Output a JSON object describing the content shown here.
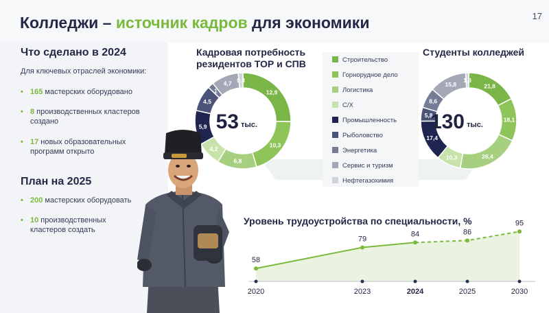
{
  "page": {
    "title_part1": "Колледжи – ",
    "title_highlight": "источник кадров",
    "title_part2": " для экономики",
    "page_number": "17"
  },
  "done_2024": {
    "heading": "Что сделано в 2024",
    "subheading": "Для ключевых отраслей экономики:",
    "items": [
      {
        "num": "165",
        "text": " мастерских оборудовано"
      },
      {
        "num": "8",
        "text": " производственных кластеров создано"
      },
      {
        "num": "17",
        "text": " новых образовательных программ открыто"
      }
    ]
  },
  "plan_2025": {
    "heading": "План на 2025",
    "items": [
      {
        "num": "200",
        "text": " мастерских оборудовать"
      },
      {
        "num": "10",
        "text": " производственных кластеров создать"
      }
    ]
  },
  "legend_colors": [
    "#7ab547",
    "#8fc45a",
    "#a6d07f",
    "#c8e2ab",
    "#1f2450",
    "#4b5378",
    "#767c95",
    "#a4a8b6",
    "#d0d3da"
  ],
  "chart_data": [
    {
      "type": "pie",
      "title": "Кадровая потребность резидентов ТОР и СПВ",
      "center_value": "53",
      "center_unit": "тыс.",
      "categories": [
        "Строительство",
        "Горнорудное дело",
        "Логистика",
        "С/Х",
        "Промышленность",
        "Рыболовство",
        "Энергетика",
        "Сервис и туризм",
        "Нефтегазохимия"
      ],
      "values": [
        12.9,
        10.3,
        6.8,
        4.2,
        5.9,
        4.5,
        1,
        4.7,
        0.8
      ],
      "labels": [
        "12,9",
        "10,3",
        "6,8",
        "4,2",
        "5,9",
        "4,5",
        "1",
        "4,7",
        "0,8"
      ]
    },
    {
      "type": "pie",
      "title": "Студенты колледжей",
      "center_value": "130",
      "center_unit": "тыс.",
      "categories": [
        "Строительство",
        "Горнорудное дело",
        "Логистика",
        "С/Х",
        "Промышленность",
        "Рыболовство",
        "Энергетика",
        "Сервис и туризм",
        "Нефтегазохимия"
      ],
      "values": [
        21.8,
        18.1,
        26.4,
        10.3,
        17.4,
        5.8,
        8.6,
        15.8,
        1.3
      ],
      "labels": [
        "21,8",
        "18,1",
        "26,4",
        "10,3",
        "17,4",
        "5,8",
        "8,6",
        "15,8",
        "1,3"
      ]
    },
    {
      "type": "line",
      "title": "Уровень трудоустройства по специальности, %",
      "x": [
        "2020",
        "2023",
        "2024",
        "2025",
        "2030"
      ],
      "values": [
        58,
        79,
        84,
        86,
        95
      ],
      "bold_x": "2024",
      "dashed_from": "2024"
    }
  ]
}
